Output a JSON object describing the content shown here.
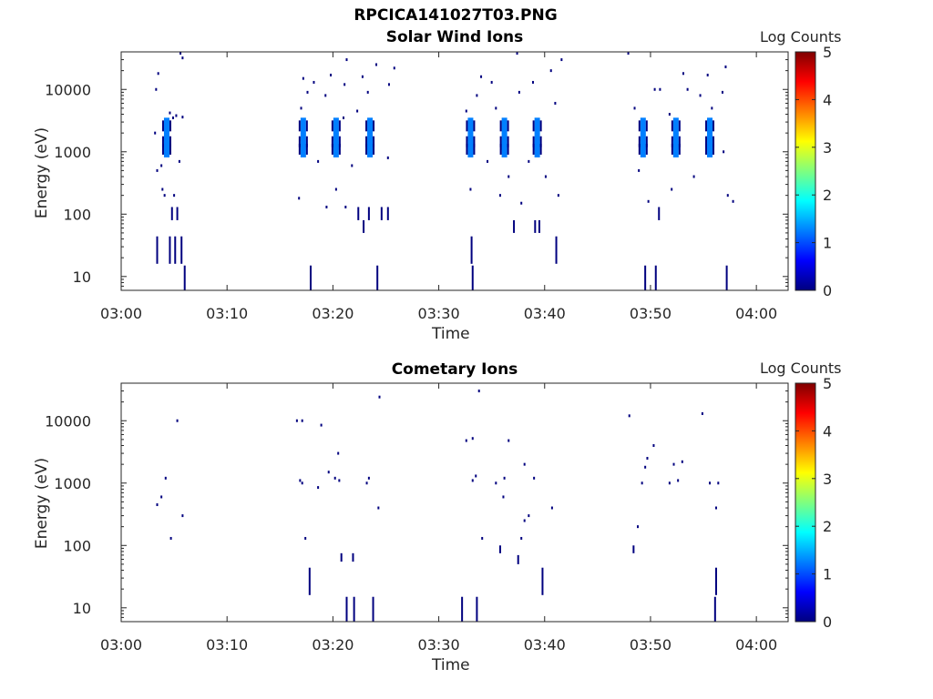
{
  "figure_title": "RPCICA141027T03.PNG",
  "colors": {
    "colormap": [
      "#00007f",
      "#0000ff",
      "#007fff",
      "#00ffff",
      "#7fff7f",
      "#ffff00",
      "#ff7f00",
      "#ff0000",
      "#7f0000"
    ],
    "axis": "#262626"
  },
  "panels": [
    {
      "title": "Solar Wind Ions",
      "xlabel": "Time",
      "ylabel": "Energy (eV)",
      "colorbar": {
        "label": "Log Counts",
        "ticks": [
          "0",
          "1",
          "2",
          "3",
          "4",
          "5"
        ],
        "range": [
          0,
          5
        ]
      },
      "x_ticks": [
        "03:00",
        "03:10",
        "03:20",
        "03:30",
        "03:40",
        "03:50",
        "04:00"
      ],
      "y_ticks": [
        "10",
        "100",
        "1000",
        "10000"
      ]
    },
    {
      "title": "Cometary Ions",
      "xlabel": "Time",
      "ylabel": "Energy (eV)",
      "colorbar": {
        "label": "Log Counts",
        "ticks": [
          "0",
          "1",
          "2",
          "3",
          "4",
          "5"
        ],
        "range": [
          0,
          5
        ]
      },
      "x_ticks": [
        "03:00",
        "03:10",
        "03:20",
        "03:30",
        "03:40",
        "03:50",
        "04:00"
      ],
      "y_ticks": [
        "10",
        "100",
        "1000",
        "10000"
      ]
    }
  ],
  "chart_data": [
    {
      "type": "heatmap",
      "title": "Solar Wind Ions",
      "xlabel": "Time",
      "ylabel": "Energy (eV)",
      "x_unit": "minutes after 03:00",
      "xlim": [
        0,
        63
      ],
      "ylim": [
        6,
        40000
      ],
      "y_scale": "log",
      "color_label": "Log Counts",
      "color_range": [
        0,
        5
      ],
      "clusters": [
        {
          "t": 4.3,
          "e": 2600,
          "v": 1.3
        },
        {
          "t": 4.3,
          "e": 1450,
          "v": 1.4
        },
        {
          "t": 4.3,
          "e": 1100,
          "v": 1.0
        },
        {
          "t": 17.2,
          "e": 2600,
          "v": 1.1
        },
        {
          "t": 17.2,
          "e": 1450,
          "v": 1.3
        },
        {
          "t": 17.2,
          "e": 1100,
          "v": 1.0
        },
        {
          "t": 20.3,
          "e": 2600,
          "v": 1.1
        },
        {
          "t": 20.3,
          "e": 1450,
          "v": 1.3
        },
        {
          "t": 20.3,
          "e": 1100,
          "v": 1.0
        },
        {
          "t": 23.5,
          "e": 2600,
          "v": 1.1
        },
        {
          "t": 23.5,
          "e": 1450,
          "v": 1.3
        },
        {
          "t": 23.5,
          "e": 1100,
          "v": 1.0
        },
        {
          "t": 33.0,
          "e": 2600,
          "v": 1.1
        },
        {
          "t": 33.0,
          "e": 1450,
          "v": 1.3
        },
        {
          "t": 33.0,
          "e": 1100,
          "v": 1.0
        },
        {
          "t": 36.2,
          "e": 2600,
          "v": 1.1
        },
        {
          "t": 36.2,
          "e": 1450,
          "v": 1.3
        },
        {
          "t": 36.2,
          "e": 1100,
          "v": 1.0
        },
        {
          "t": 39.3,
          "e": 2600,
          "v": 1.1
        },
        {
          "t": 39.3,
          "e": 1450,
          "v": 1.3
        },
        {
          "t": 39.3,
          "e": 1100,
          "v": 1.0
        },
        {
          "t": 49.3,
          "e": 2600,
          "v": 1.1
        },
        {
          "t": 49.3,
          "e": 1450,
          "v": 1.3
        },
        {
          "t": 49.3,
          "e": 1100,
          "v": 1.0
        },
        {
          "t": 52.4,
          "e": 2600,
          "v": 1.1
        },
        {
          "t": 52.4,
          "e": 1450,
          "v": 1.3
        },
        {
          "t": 52.4,
          "e": 1100,
          "v": 1.0
        },
        {
          "t": 55.6,
          "e": 2600,
          "v": 1.1
        },
        {
          "t": 55.6,
          "e": 1450,
          "v": 1.3
        },
        {
          "t": 55.6,
          "e": 1100,
          "v": 1.0
        }
      ],
      "bars": [
        {
          "t": 3.4,
          "e1": 16,
          "e2": 44
        },
        {
          "t": 4.6,
          "e1": 16,
          "e2": 44
        },
        {
          "t": 5.1,
          "e1": 16,
          "e2": 44
        },
        {
          "t": 5.7,
          "e1": 16,
          "e2": 44
        },
        {
          "t": 6.0,
          "e1": 6,
          "e2": 15
        },
        {
          "t": 4.8,
          "e1": 80,
          "e2": 130
        },
        {
          "t": 5.3,
          "e1": 80,
          "e2": 130
        },
        {
          "t": 17.9,
          "e1": 6,
          "e2": 15
        },
        {
          "t": 24.2,
          "e1": 6,
          "e2": 15
        },
        {
          "t": 22.9,
          "e1": 50,
          "e2": 80
        },
        {
          "t": 22.4,
          "e1": 80,
          "e2": 130
        },
        {
          "t": 23.4,
          "e1": 80,
          "e2": 130
        },
        {
          "t": 24.6,
          "e1": 80,
          "e2": 130
        },
        {
          "t": 25.2,
          "e1": 80,
          "e2": 130
        },
        {
          "t": 33.1,
          "e1": 16,
          "e2": 44
        },
        {
          "t": 33.2,
          "e1": 6,
          "e2": 15
        },
        {
          "t": 37.1,
          "e1": 50,
          "e2": 80
        },
        {
          "t": 39.1,
          "e1": 50,
          "e2": 80
        },
        {
          "t": 39.5,
          "e1": 50,
          "e2": 80
        },
        {
          "t": 41.1,
          "e1": 16,
          "e2": 44
        },
        {
          "t": 49.5,
          "e1": 6,
          "e2": 15
        },
        {
          "t": 50.5,
          "e1": 6,
          "e2": 15
        },
        {
          "t": 57.2,
          "e1": 6,
          "e2": 15
        },
        {
          "t": 50.8,
          "e1": 80,
          "e2": 130
        }
      ],
      "scatter": [
        {
          "t": 3.2,
          "e": 2000
        },
        {
          "t": 3.3,
          "e": 10000
        },
        {
          "t": 3.5,
          "e": 18000
        },
        {
          "t": 3.4,
          "e": 500
        },
        {
          "t": 3.8,
          "e": 600
        },
        {
          "t": 3.9,
          "e": 250
        },
        {
          "t": 4.1,
          "e": 200
        },
        {
          "t": 5.0,
          "e": 200
        },
        {
          "t": 4.6,
          "e": 4200
        },
        {
          "t": 5.2,
          "e": 3800
        },
        {
          "t": 5.8,
          "e": 3600
        },
        {
          "t": 5.5,
          "e": 700
        },
        {
          "t": 5.6,
          "e": 38000
        },
        {
          "t": 5.8,
          "e": 32000
        },
        {
          "t": 4.9,
          "e": 3500
        },
        {
          "t": 16.8,
          "e": 180
        },
        {
          "t": 17.0,
          "e": 5000
        },
        {
          "t": 17.2,
          "e": 15000
        },
        {
          "t": 17.6,
          "e": 9000
        },
        {
          "t": 18.2,
          "e": 13000
        },
        {
          "t": 18.6,
          "e": 700
        },
        {
          "t": 19.3,
          "e": 8000
        },
        {
          "t": 19.8,
          "e": 17000
        },
        {
          "t": 21.0,
          "e": 3500
        },
        {
          "t": 21.1,
          "e": 12000
        },
        {
          "t": 21.3,
          "e": 30000
        },
        {
          "t": 21.8,
          "e": 600
        },
        {
          "t": 22.3,
          "e": 4500
        },
        {
          "t": 22.8,
          "e": 16000
        },
        {
          "t": 23.3,
          "e": 9000
        },
        {
          "t": 24.1,
          "e": 25000
        },
        {
          "t": 25.2,
          "e": 800
        },
        {
          "t": 25.3,
          "e": 12000
        },
        {
          "t": 25.8,
          "e": 22000
        },
        {
          "t": 19.4,
          "e": 130
        },
        {
          "t": 20.3,
          "e": 250
        },
        {
          "t": 21.2,
          "e": 130
        },
        {
          "t": 32.6,
          "e": 4500
        },
        {
          "t": 33.0,
          "e": 250
        },
        {
          "t": 33.6,
          "e": 8000
        },
        {
          "t": 34.0,
          "e": 16000
        },
        {
          "t": 34.6,
          "e": 700
        },
        {
          "t": 35.0,
          "e": 13000
        },
        {
          "t": 35.4,
          "e": 5000
        },
        {
          "t": 35.8,
          "e": 200
        },
        {
          "t": 36.6,
          "e": 400
        },
        {
          "t": 37.4,
          "e": 38000
        },
        {
          "t": 37.6,
          "e": 9000
        },
        {
          "t": 37.8,
          "e": 150
        },
        {
          "t": 38.5,
          "e": 700
        },
        {
          "t": 38.9,
          "e": 13000
        },
        {
          "t": 40.1,
          "e": 400
        },
        {
          "t": 40.6,
          "e": 20000
        },
        {
          "t": 41.0,
          "e": 6000
        },
        {
          "t": 41.3,
          "e": 200
        },
        {
          "t": 41.6,
          "e": 30000
        },
        {
          "t": 47.9,
          "e": 38000
        },
        {
          "t": 48.5,
          "e": 5000
        },
        {
          "t": 48.9,
          "e": 500
        },
        {
          "t": 49.8,
          "e": 160
        },
        {
          "t": 50.4,
          "e": 10000
        },
        {
          "t": 50.9,
          "e": 10000
        },
        {
          "t": 51.8,
          "e": 4000
        },
        {
          "t": 52.0,
          "e": 250
        },
        {
          "t": 53.1,
          "e": 18000
        },
        {
          "t": 53.5,
          "e": 10000
        },
        {
          "t": 54.1,
          "e": 400
        },
        {
          "t": 54.7,
          "e": 8000
        },
        {
          "t": 55.4,
          "e": 17000
        },
        {
          "t": 55.8,
          "e": 5000
        },
        {
          "t": 56.8,
          "e": 9000
        },
        {
          "t": 57.1,
          "e": 23000
        },
        {
          "t": 57.3,
          "e": 200
        },
        {
          "t": 57.8,
          "e": 160
        },
        {
          "t": 56.9,
          "e": 1000
        }
      ]
    },
    {
      "type": "heatmap",
      "title": "Cometary Ions",
      "xlabel": "Time",
      "ylabel": "Energy (eV)",
      "x_unit": "minutes after 03:00",
      "xlim": [
        0,
        63
      ],
      "ylim": [
        6,
        40000
      ],
      "y_scale": "log",
      "color_label": "Log Counts",
      "color_range": [
        0,
        5
      ],
      "clusters": [],
      "bars": [
        {
          "t": 17.8,
          "e1": 16,
          "e2": 44
        },
        {
          "t": 21.3,
          "e1": 6,
          "e2": 15
        },
        {
          "t": 22.0,
          "e1": 6,
          "e2": 15
        },
        {
          "t": 23.8,
          "e1": 6,
          "e2": 15
        },
        {
          "t": 20.8,
          "e1": 55,
          "e2": 75
        },
        {
          "t": 21.9,
          "e1": 55,
          "e2": 75
        },
        {
          "t": 32.2,
          "e1": 6,
          "e2": 15
        },
        {
          "t": 33.6,
          "e1": 6,
          "e2": 15
        },
        {
          "t": 39.8,
          "e1": 16,
          "e2": 44
        },
        {
          "t": 56.2,
          "e1": 16,
          "e2": 44
        },
        {
          "t": 56.1,
          "e1": 6,
          "e2": 15
        },
        {
          "t": 35.8,
          "e1": 75,
          "e2": 100
        },
        {
          "t": 37.5,
          "e1": 50,
          "e2": 70
        },
        {
          "t": 48.4,
          "e1": 75,
          "e2": 100
        }
      ],
      "scatter": [
        {
          "t": 3.4,
          "e": 450
        },
        {
          "t": 3.8,
          "e": 600
        },
        {
          "t": 4.2,
          "e": 1200
        },
        {
          "t": 4.7,
          "e": 130
        },
        {
          "t": 5.3,
          "e": 10000
        },
        {
          "t": 5.8,
          "e": 300
        },
        {
          "t": 16.6,
          "e": 10000
        },
        {
          "t": 17.1,
          "e": 10000
        },
        {
          "t": 16.9,
          "e": 1100
        },
        {
          "t": 17.1,
          "e": 1000
        },
        {
          "t": 17.4,
          "e": 130
        },
        {
          "t": 18.6,
          "e": 850
        },
        {
          "t": 18.9,
          "e": 8500
        },
        {
          "t": 19.6,
          "e": 1500
        },
        {
          "t": 20.2,
          "e": 1200
        },
        {
          "t": 20.5,
          "e": 3000
        },
        {
          "t": 20.6,
          "e": 1100
        },
        {
          "t": 23.2,
          "e": 1000
        },
        {
          "t": 23.4,
          "e": 1200
        },
        {
          "t": 24.3,
          "e": 400
        },
        {
          "t": 24.4,
          "e": 24000
        },
        {
          "t": 32.6,
          "e": 4800
        },
        {
          "t": 33.2,
          "e": 5200
        },
        {
          "t": 33.2,
          "e": 1100
        },
        {
          "t": 33.5,
          "e": 1300
        },
        {
          "t": 33.8,
          "e": 30000
        },
        {
          "t": 34.1,
          "e": 130
        },
        {
          "t": 35.4,
          "e": 1000
        },
        {
          "t": 36.2,
          "e": 1200
        },
        {
          "t": 36.1,
          "e": 600
        },
        {
          "t": 36.6,
          "e": 4800
        },
        {
          "t": 38.1,
          "e": 2000
        },
        {
          "t": 37.8,
          "e": 130
        },
        {
          "t": 38.1,
          "e": 250
        },
        {
          "t": 38.5,
          "e": 300
        },
        {
          "t": 39.0,
          "e": 1200
        },
        {
          "t": 40.7,
          "e": 400
        },
        {
          "t": 48.0,
          "e": 12000
        },
        {
          "t": 48.8,
          "e": 200
        },
        {
          "t": 49.2,
          "e": 1000
        },
        {
          "t": 49.5,
          "e": 1800
        },
        {
          "t": 49.7,
          "e": 2500
        },
        {
          "t": 50.3,
          "e": 4000
        },
        {
          "t": 51.8,
          "e": 1000
        },
        {
          "t": 52.2,
          "e": 2000
        },
        {
          "t": 52.6,
          "e": 1100
        },
        {
          "t": 53.0,
          "e": 2200
        },
        {
          "t": 54.9,
          "e": 13000
        },
        {
          "t": 55.6,
          "e": 1000
        },
        {
          "t": 56.2,
          "e": 400
        },
        {
          "t": 56.4,
          "e": 1000
        }
      ]
    }
  ]
}
